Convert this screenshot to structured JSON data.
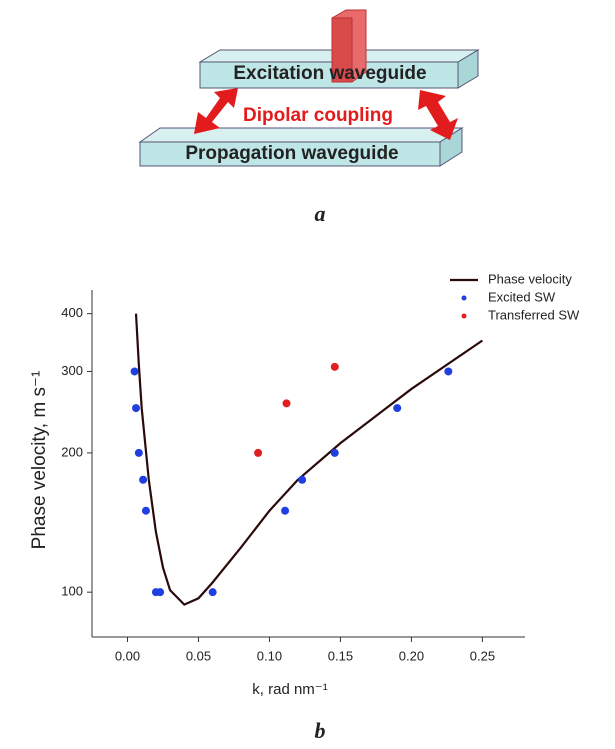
{
  "diagram": {
    "excitation": "Excitation waveguide",
    "coupling": "Dipolar coupling",
    "propagation": "Propagation waveguide",
    "caption": "a"
  },
  "chart_data": {
    "type": "scatter",
    "caption": "b",
    "xlabel": "k, rad nm⁻¹",
    "ylabel": "Phase velocity, m s⁻¹",
    "xlim": [
      -0.025,
      0.28
    ],
    "ylim": [
      80,
      450
    ],
    "yscale": "log",
    "xticks": [
      {
        "value": 0,
        "label": "0.00"
      },
      {
        "value": 0.05,
        "label": "0.05"
      },
      {
        "value": 0.1,
        "label": "0.10"
      },
      {
        "value": 0.15,
        "label": "0.15"
      },
      {
        "value": 0.2,
        "label": "0.20"
      },
      {
        "value": 0.25,
        "label": "0.25"
      }
    ],
    "yticks": [
      100,
      200,
      300,
      400
    ],
    "legend": "upper right",
    "series": [
      {
        "name": "Phase velocity",
        "type": "line",
        "color": "#2a0a0a",
        "x": [
          0.006,
          0.008,
          0.01,
          0.015,
          0.02,
          0.025,
          0.03,
          0.04,
          0.05,
          0.06,
          0.08,
          0.1,
          0.12,
          0.15,
          0.2,
          0.25
        ],
        "values": [
          400,
          310,
          250,
          175,
          135,
          113,
          101,
          94,
          97,
          105,
          125,
          150,
          175,
          210,
          275,
          350
        ]
      },
      {
        "name": "Excited SW",
        "type": "scatter",
        "color": "#1f3fe0",
        "x": [
          0.005,
          0.006,
          0.008,
          0.011,
          0.013,
          0.02,
          0.023,
          0.06,
          0.111,
          0.123,
          0.146,
          0.19,
          0.226
        ],
        "values": [
          300,
          250,
          200,
          175,
          150,
          100,
          100,
          100,
          150,
          175,
          200,
          250,
          300
        ]
      },
      {
        "name": "Transferred SW",
        "type": "scatter",
        "color": "#e02020",
        "x": [
          0.092,
          0.112,
          0.146
        ],
        "values": [
          200,
          256,
          307
        ]
      }
    ]
  }
}
